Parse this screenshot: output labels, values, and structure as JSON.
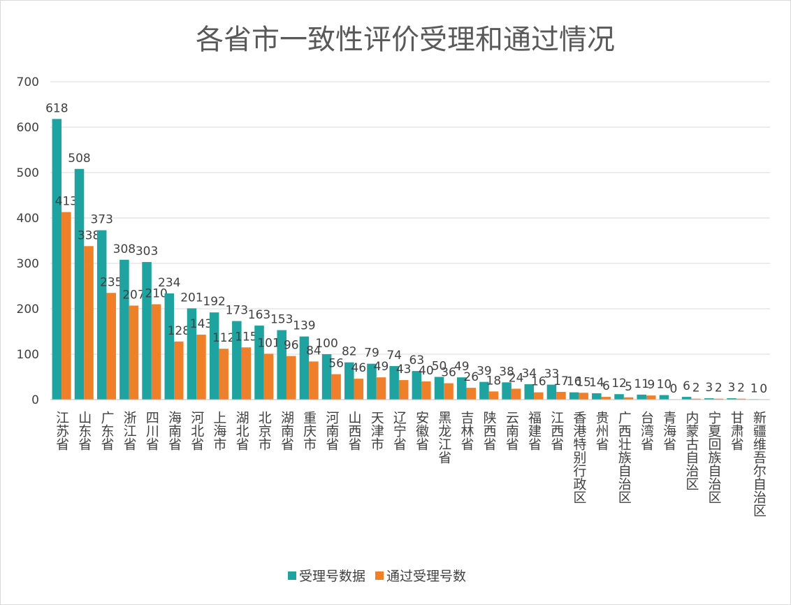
{
  "chart_data": {
    "type": "bar",
    "title": "各省市一致性评价受理和通过情况",
    "categories": [
      "江苏省",
      "山东省",
      "广东省",
      "浙江省",
      "四川省",
      "海南省",
      "河北省",
      "上海市",
      "湖北省",
      "北京市",
      "湖南省",
      "重庆市",
      "河南省",
      "山西省",
      "天津市",
      "辽宁省",
      "安徽省",
      "黑龙江省",
      "吉林省",
      "陕西省",
      "云南省",
      "福建省",
      "江西省",
      "香港特别行政区",
      "贵州省",
      "广西壮族自治区",
      "台湾省",
      "青海省",
      "内蒙古自治区",
      "宁夏回族自治区",
      "甘肃省",
      "新疆维吾尔自治区"
    ],
    "series": [
      {
        "name": "受理号数据",
        "color": "#1fa3a0",
        "values": [
          618,
          508,
          373,
          308,
          303,
          234,
          201,
          192,
          173,
          163,
          153,
          139,
          100,
          82,
          79,
          74,
          63,
          50,
          49,
          39,
          38,
          34,
          33,
          16,
          14,
          12,
          11,
          10,
          6,
          3,
          3,
          1
        ]
      },
      {
        "name": "通过受理号数",
        "color": "#f07f2a",
        "values": [
          413,
          338,
          235,
          207,
          210,
          128,
          143,
          112,
          115,
          101,
          96,
          84,
          56,
          46,
          49,
          43,
          40,
          36,
          26,
          18,
          24,
          16,
          17,
          15,
          6,
          5,
          9,
          0,
          2,
          2,
          2,
          0
        ]
      }
    ],
    "ylim": [
      0,
      700
    ],
    "yticks": [
      0,
      100,
      200,
      300,
      400,
      500,
      600,
      700
    ],
    "grid": true,
    "legend": "bottom"
  }
}
